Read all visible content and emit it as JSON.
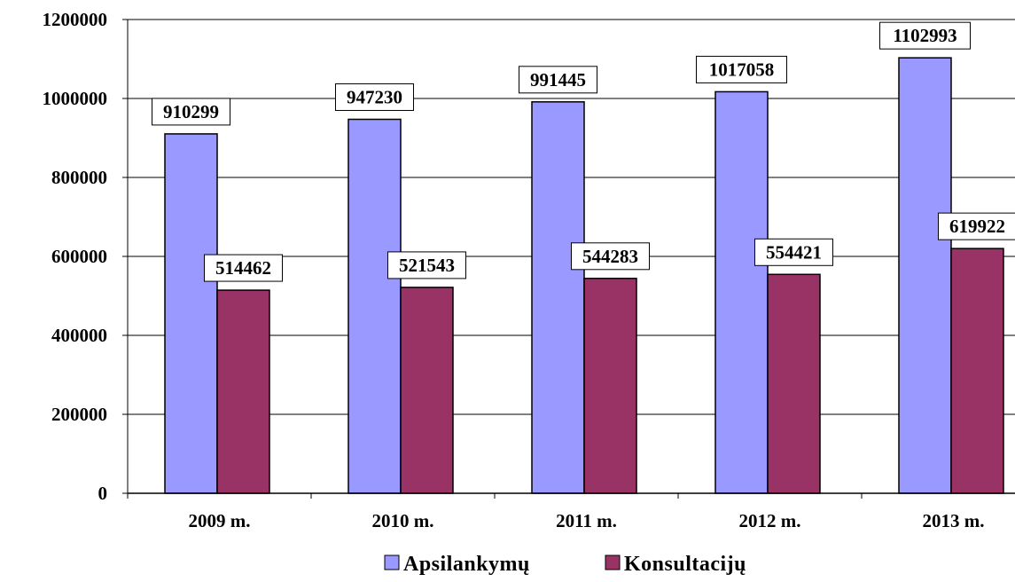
{
  "chart_data": {
    "type": "bar",
    "categories": [
      "2009 m.",
      "2010 m.",
      "2011 m.",
      "2012 m.",
      "2013 m."
    ],
    "series": [
      {
        "name": "Apsilankymų",
        "values": [
          910299,
          947230,
          991445,
          1017058,
          1102993
        ],
        "color": "#9999ff"
      },
      {
        "name": "Konsultacijų",
        "values": [
          514462,
          521543,
          544283,
          554421,
          619922
        ],
        "color": "#993366"
      }
    ],
    "y_ticks": [
      "0",
      "200000",
      "400000",
      "600000",
      "800000",
      "1000000",
      "1200000"
    ],
    "ylim": [
      0,
      1200000
    ],
    "grid": true,
    "legend": "bottom-center",
    "data_labels": true
  }
}
